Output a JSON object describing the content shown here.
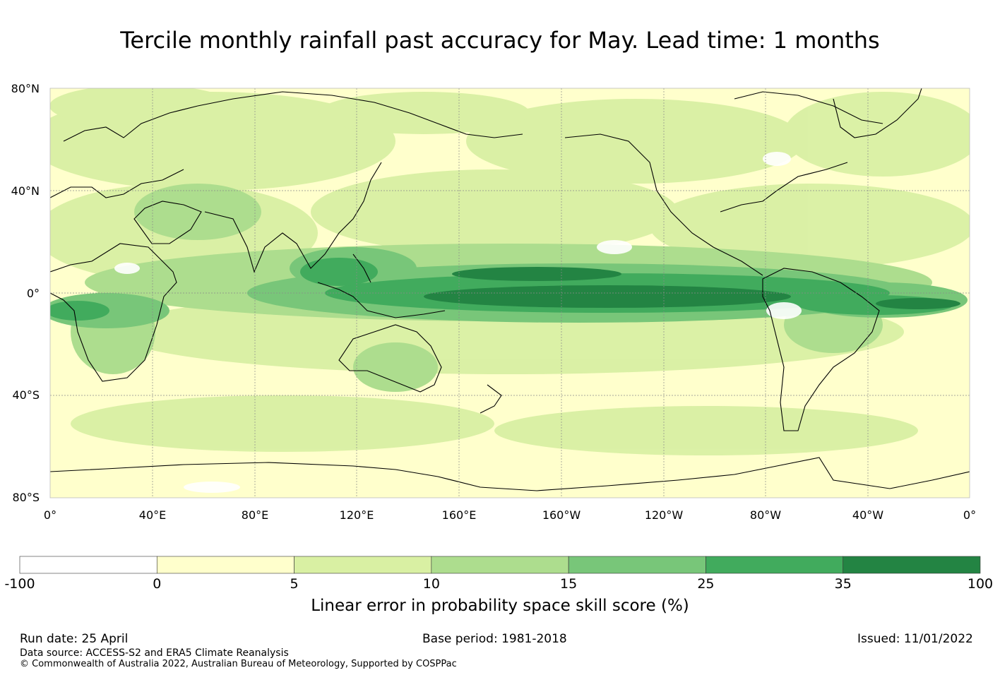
{
  "title": "Tercile monthly rainfall past accuracy for May. Lead time: 1 months",
  "map": {
    "lat_labels": [
      "80°N",
      "40°N",
      "0°",
      "40°S",
      "80°S"
    ],
    "lon_labels": [
      "0°",
      "40°E",
      "80°E",
      "120°E",
      "160°E",
      "160°W",
      "120°W",
      "80°W",
      "40°W",
      "0°"
    ],
    "extent": {
      "lon": [
        0,
        360
      ],
      "lat": [
        -80,
        80
      ]
    }
  },
  "colorbar": {
    "ticks": [
      "-100",
      "0",
      "5",
      "10",
      "15",
      "25",
      "35",
      "100"
    ],
    "colors": [
      "#ffffff",
      "#ffffcc",
      "#d9f0a3",
      "#addd8e",
      "#78c679",
      "#41ab5d",
      "#238443"
    ],
    "label": "Linear error in probability space skill score (%)"
  },
  "footer": {
    "run_date": "Run date: 25 April",
    "base_period": "Base period: 1981-2018",
    "issued": "Issued: 11/01/2022",
    "data_source": "Data source: ACCESS-S2 and ERA5 Climate Reanalysis",
    "copyright": "© Commonwealth of Australia 2022, Australian Bureau of Meteorology, Supported by COSPPac"
  }
}
